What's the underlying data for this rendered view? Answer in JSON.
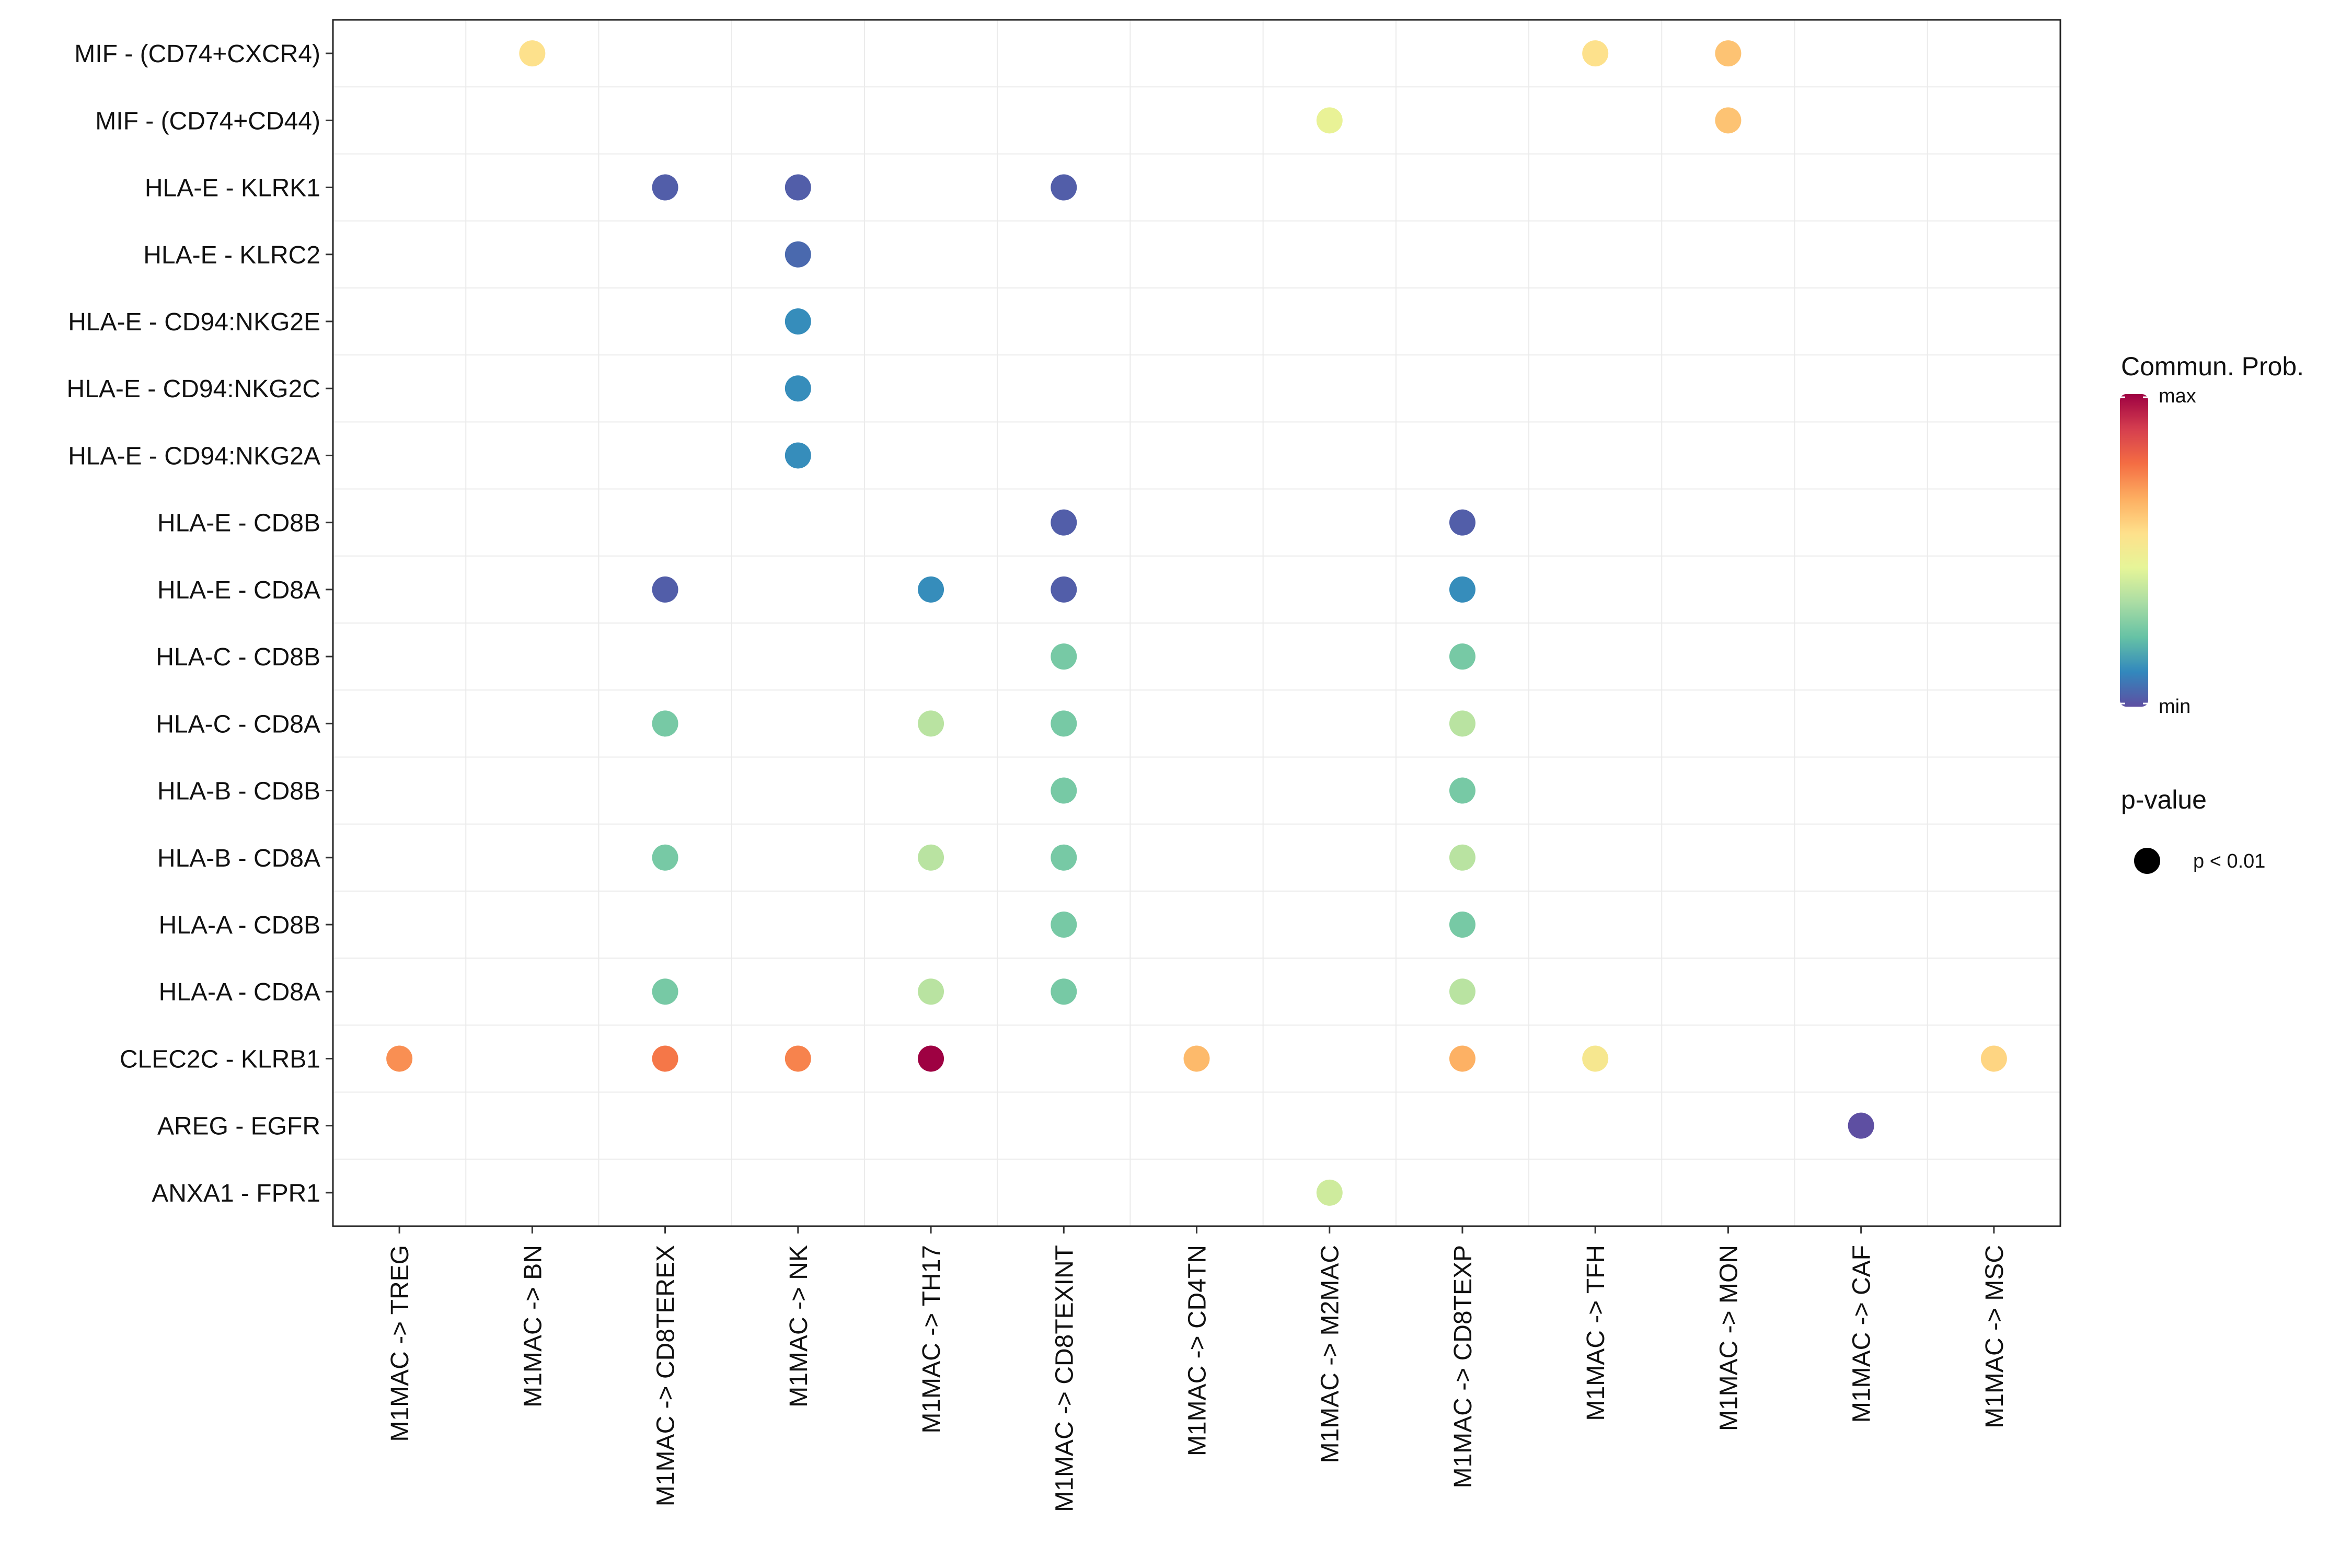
{
  "chart_data": {
    "type": "scatter",
    "title": "",
    "xlabel": "",
    "ylabel": "",
    "x_categories": [
      "M1MAC -> TREG",
      "M1MAC -> BN",
      "M1MAC -> CD8TEREX",
      "M1MAC -> NK",
      "M1MAC -> TH17",
      "M1MAC -> CD8TEXINT",
      "M1MAC -> CD4TN",
      "M1MAC -> M2MAC",
      "M1MAC -> CD8TEXP",
      "M1MAC -> TFH",
      "M1MAC -> MON",
      "M1MAC -> CAF",
      "M1MAC -> MSC"
    ],
    "y_categories": [
      "MIF - (CD74+CXCR4)",
      "MIF - (CD74+CD44)",
      "HLA-E - KLRK1",
      "HLA-E - KLRC2",
      "HLA-E - CD94:NKG2E",
      "HLA-E - CD94:NKG2C",
      "HLA-E - CD94:NKG2A",
      "HLA-E - CD8B",
      "HLA-E - CD8A",
      "HLA-C - CD8B",
      "HLA-C - CD8A",
      "HLA-B - CD8B",
      "HLA-B - CD8A",
      "HLA-A - CD8B",
      "HLA-A - CD8A",
      "CLEC2C - KLRB1",
      "AREG - EGFR",
      "ANXA1 - FPR1"
    ],
    "points": [
      {
        "x": "M1MAC -> BN",
        "y": "MIF - (CD74+CXCR4)",
        "prob": 0.55
      },
      {
        "x": "M1MAC -> TFH",
        "y": "MIF - (CD74+CXCR4)",
        "prob": 0.55
      },
      {
        "x": "M1MAC -> MON",
        "y": "MIF - (CD74+CXCR4)",
        "prob": 0.62
      },
      {
        "x": "M1MAC -> M2MAC",
        "y": "MIF - (CD74+CD44)",
        "prob": 0.46
      },
      {
        "x": "M1MAC -> MON",
        "y": "MIF - (CD74+CD44)",
        "prob": 0.62
      },
      {
        "x": "M1MAC -> CD8TEREX",
        "y": "HLA-E - KLRK1",
        "prob": 0.03
      },
      {
        "x": "M1MAC -> NK",
        "y": "HLA-E - KLRK1",
        "prob": 0.03
      },
      {
        "x": "M1MAC -> CD8TEXINT",
        "y": "HLA-E - KLRK1",
        "prob": 0.03
      },
      {
        "x": "M1MAC -> NK",
        "y": "HLA-E - KLRC2",
        "prob": 0.05
      },
      {
        "x": "M1MAC -> NK",
        "y": "HLA-E - CD94:NKG2E",
        "prob": 0.12
      },
      {
        "x": "M1MAC -> NK",
        "y": "HLA-E - CD94:NKG2C",
        "prob": 0.12
      },
      {
        "x": "M1MAC -> NK",
        "y": "HLA-E - CD94:NKG2A",
        "prob": 0.12
      },
      {
        "x": "M1MAC -> CD8TEXINT",
        "y": "HLA-E - CD8B",
        "prob": 0.03
      },
      {
        "x": "M1MAC -> CD8TEXP",
        "y": "HLA-E - CD8B",
        "prob": 0.03
      },
      {
        "x": "M1MAC -> CD8TEREX",
        "y": "HLA-E - CD8A",
        "prob": 0.03
      },
      {
        "x": "M1MAC -> TH17",
        "y": "HLA-E - CD8A",
        "prob": 0.12
      },
      {
        "x": "M1MAC -> CD8TEXINT",
        "y": "HLA-E - CD8A",
        "prob": 0.03
      },
      {
        "x": "M1MAC -> CD8TEXP",
        "y": "HLA-E - CD8A",
        "prob": 0.12
      },
      {
        "x": "M1MAC -> CD8TEXINT",
        "y": "HLA-C - CD8B",
        "prob": 0.25
      },
      {
        "x": "M1MAC -> CD8TEXP",
        "y": "HLA-C - CD8B",
        "prob": 0.25
      },
      {
        "x": "M1MAC -> CD8TEREX",
        "y": "HLA-C - CD8A",
        "prob": 0.25
      },
      {
        "x": "M1MAC -> TH17",
        "y": "HLA-C - CD8A",
        "prob": 0.36
      },
      {
        "x": "M1MAC -> CD8TEXINT",
        "y": "HLA-C - CD8A",
        "prob": 0.25
      },
      {
        "x": "M1MAC -> CD8TEXP",
        "y": "HLA-C - CD8A",
        "prob": 0.36
      },
      {
        "x": "M1MAC -> CD8TEXINT",
        "y": "HLA-B - CD8B",
        "prob": 0.25
      },
      {
        "x": "M1MAC -> CD8TEXP",
        "y": "HLA-B - CD8B",
        "prob": 0.25
      },
      {
        "x": "M1MAC -> CD8TEREX",
        "y": "HLA-B - CD8A",
        "prob": 0.25
      },
      {
        "x": "M1MAC -> TH17",
        "y": "HLA-B - CD8A",
        "prob": 0.36
      },
      {
        "x": "M1MAC -> CD8TEXINT",
        "y": "HLA-B - CD8A",
        "prob": 0.25
      },
      {
        "x": "M1MAC -> CD8TEXP",
        "y": "HLA-B - CD8A",
        "prob": 0.36
      },
      {
        "x": "M1MAC -> CD8TEXINT",
        "y": "HLA-A - CD8B",
        "prob": 0.25
      },
      {
        "x": "M1MAC -> CD8TEXP",
        "y": "HLA-A - CD8B",
        "prob": 0.25
      },
      {
        "x": "M1MAC -> CD8TEREX",
        "y": "HLA-A - CD8A",
        "prob": 0.25
      },
      {
        "x": "M1MAC -> TH17",
        "y": "HLA-A - CD8A",
        "prob": 0.36
      },
      {
        "x": "M1MAC -> CD8TEXINT",
        "y": "HLA-A - CD8A",
        "prob": 0.25
      },
      {
        "x": "M1MAC -> CD8TEXP",
        "y": "HLA-A - CD8A",
        "prob": 0.36
      },
      {
        "x": "M1MAC -> TREG",
        "y": "CLEC2C - KLRB1",
        "prob": 0.72
      },
      {
        "x": "M1MAC -> CD8TEREX",
        "y": "CLEC2C - KLRB1",
        "prob": 0.76
      },
      {
        "x": "M1MAC -> NK",
        "y": "CLEC2C - KLRB1",
        "prob": 0.74
      },
      {
        "x": "M1MAC -> TH17",
        "y": "CLEC2C - KLRB1",
        "prob": 1.0
      },
      {
        "x": "M1MAC -> CD4TN",
        "y": "CLEC2C - KLRB1",
        "prob": 0.64
      },
      {
        "x": "M1MAC -> CD8TEXP",
        "y": "CLEC2C - KLRB1",
        "prob": 0.66
      },
      {
        "x": "M1MAC -> TFH",
        "y": "CLEC2C - KLRB1",
        "prob": 0.52
      },
      {
        "x": "M1MAC -> MSC",
        "y": "CLEC2C - KLRB1",
        "prob": 0.58
      },
      {
        "x": "M1MAC -> CAF",
        "y": "AREG - EGFR",
        "prob": 0.0
      },
      {
        "x": "M1MAC -> M2MAC",
        "y": "ANXA1 - FPR1",
        "prob": 0.4
      }
    ],
    "colorbar": {
      "title": "Commun. Prob.",
      "max_label": "max",
      "min_label": "min",
      "palette": [
        "#5E4FA2",
        "#3288BD",
        "#66C2A5",
        "#ABDDA4",
        "#E6F598",
        "#FEE08B",
        "#FDAE61",
        "#F46D43",
        "#D53E4F",
        "#9E0142"
      ]
    },
    "size_legend": {
      "title": "p-value",
      "entries": [
        "p < 0.01"
      ]
    }
  }
}
